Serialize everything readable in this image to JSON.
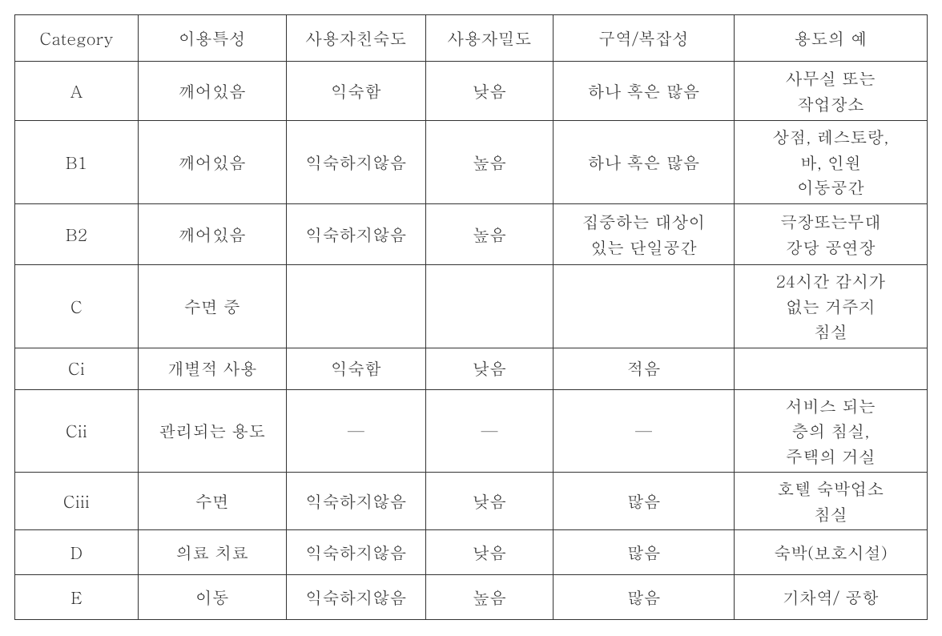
{
  "table": {
    "columns": [
      "Category",
      "이용특성",
      "사용자친숙도",
      "사용자밀도",
      "구역/복잡성",
      "용도의 예"
    ],
    "rows": [
      {
        "category": "A",
        "usage": "깨어있음",
        "familiar": "익숙함",
        "density": "낮음",
        "region": "하나 혹은 많음",
        "example": "사무실 또는\n작업장소"
      },
      {
        "category": "B1",
        "usage": "깨어있음",
        "familiar": "익숙하지않음",
        "density": "높음",
        "region": "하나 혹은 많음",
        "example": "상점, 레스토랑,\n바, 인원\n이동공간"
      },
      {
        "category": "B2",
        "usage": "깨어있음",
        "familiar": "익숙하지않음",
        "density": "높음",
        "region": "집중하는 대상이\n있는 단일공간",
        "example": "극장또는무대\n강당 공연장"
      },
      {
        "category": "C",
        "usage": "수면 중",
        "familiar": "",
        "density": "",
        "region": "",
        "example": "24시간 감시가\n없는 거주지\n침실"
      },
      {
        "category": "Ci",
        "usage": "개별적 사용",
        "familiar": "익숙함",
        "density": "낮음",
        "region": "적음",
        "example": ""
      },
      {
        "category": "Cii",
        "usage": "관리되는 용도",
        "familiar": "—",
        "density": "—",
        "region": "—",
        "example": "서비스 되는\n층의 침실,\n주택의 거실"
      },
      {
        "category": "Ciii",
        "usage": "수면",
        "familiar": "익숙하지않음",
        "density": "낮음",
        "region": "많음",
        "example": "호텔 숙박업소\n침실"
      },
      {
        "category": "D",
        "usage": "의료 치료",
        "familiar": "익숙하지않음",
        "density": "낮음",
        "region": "많음",
        "example": "숙박(보호시설)"
      },
      {
        "category": "E",
        "usage": "이동",
        "familiar": "익숙하지않음",
        "density": "높음",
        "region": "많음",
        "example": "기차역/ 공항"
      }
    ],
    "border_color": "#333333",
    "text_color": "#333333",
    "background_color": "#ffffff",
    "font_size": 21,
    "row_classes": [
      "row-a",
      "row-b1",
      "row-b2",
      "row-c",
      "row-ci",
      "row-cii",
      "row-ciii",
      "row-d",
      "row-e"
    ]
  }
}
